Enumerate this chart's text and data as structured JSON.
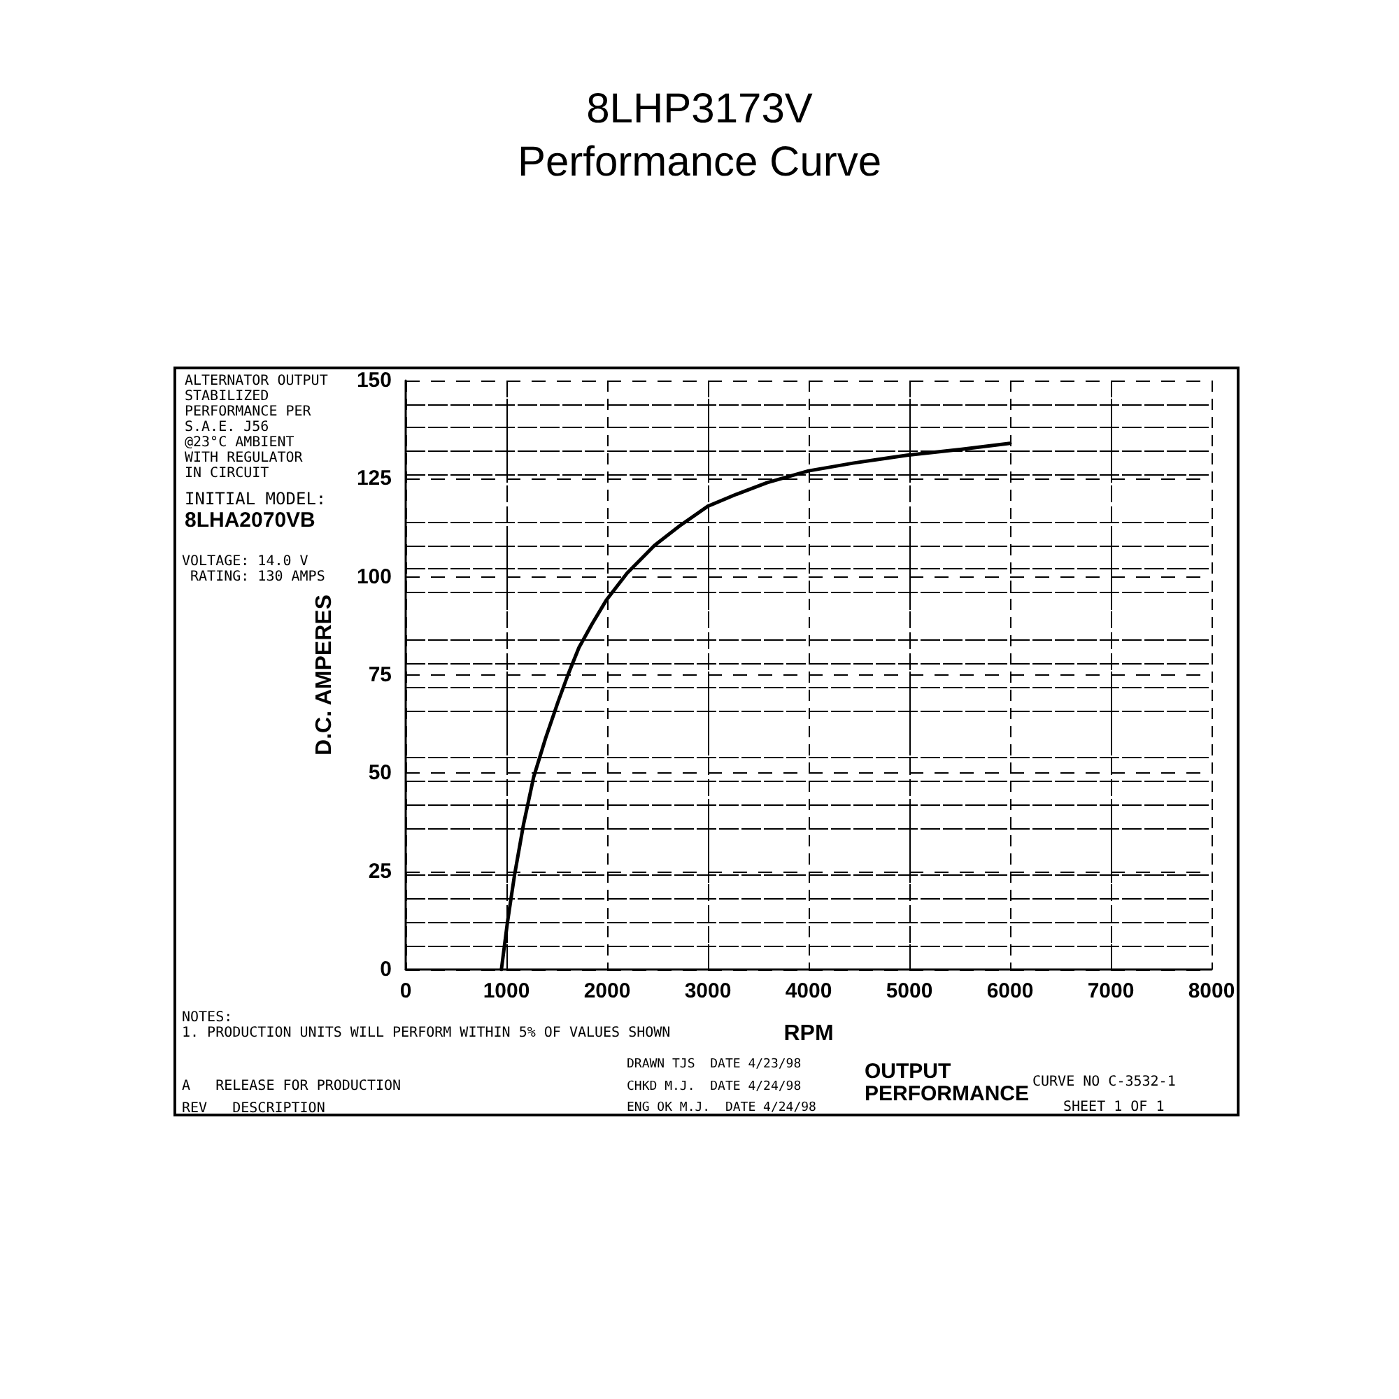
{
  "chart_data": {
    "type": "line",
    "title": "8LHP3173V",
    "subtitle": "Performance Curve",
    "xlabel": "RPM",
    "ylabel": "D.C. AMPERES",
    "x": [
      950,
      1010,
      1080,
      1170,
      1270,
      1390,
      1510,
      1610,
      1720,
      1850,
      1990,
      2200,
      2470,
      2720,
      3000,
      3280,
      3590,
      4000,
      4450,
      4980,
      5520,
      6000
    ],
    "series": [
      {
        "color": "#000000",
        "values": [
          0,
          12,
          24,
          37,
          49,
          59,
          68,
          75,
          82,
          88,
          94,
          101,
          108,
          113,
          118,
          121,
          124,
          127,
          129,
          131,
          132.5,
          134
        ]
      }
    ],
    "xlim": [
      0,
      8000
    ],
    "xticks": [
      0,
      1000,
      2000,
      3000,
      4000,
      5000,
      6000,
      7000,
      8000
    ],
    "ylim": [
      0,
      150
    ],
    "yticks": [
      0,
      25,
      50,
      75,
      100,
      125,
      150
    ],
    "grid": true,
    "marker": "none",
    "line_style": "solid",
    "annotations": [
      "ALTERNATOR OUTPUT\nSTABILIZED\nPERFORMANCE PER\nS.A.E. J56\n@23°C AMBIENT\nWITH REGULATOR\nIN CIRCUIT",
      "INITIAL MODEL:",
      "8LHA2070VB",
      "VOLTAGE: 14.0 V\n RATING: 130 AMPS",
      "NOTES:\n1. PRODUCTION UNITS WILL PERFORM WITHIN 5% OF VALUES SHOWN",
      "OUTPUT\nPERFORMANCE",
      "CURVE NO C-3532-1",
      "SHEET 1 OF 1",
      "DRAWN TJS  DATE 4/23/98",
      "CHKD M.J.  DATE 4/24/98",
      "ENG OK M.J.  DATE 4/24/98",
      "A   RELEASE FOR PRODUCTION",
      "REV   DESCRIPTION"
    ]
  }
}
